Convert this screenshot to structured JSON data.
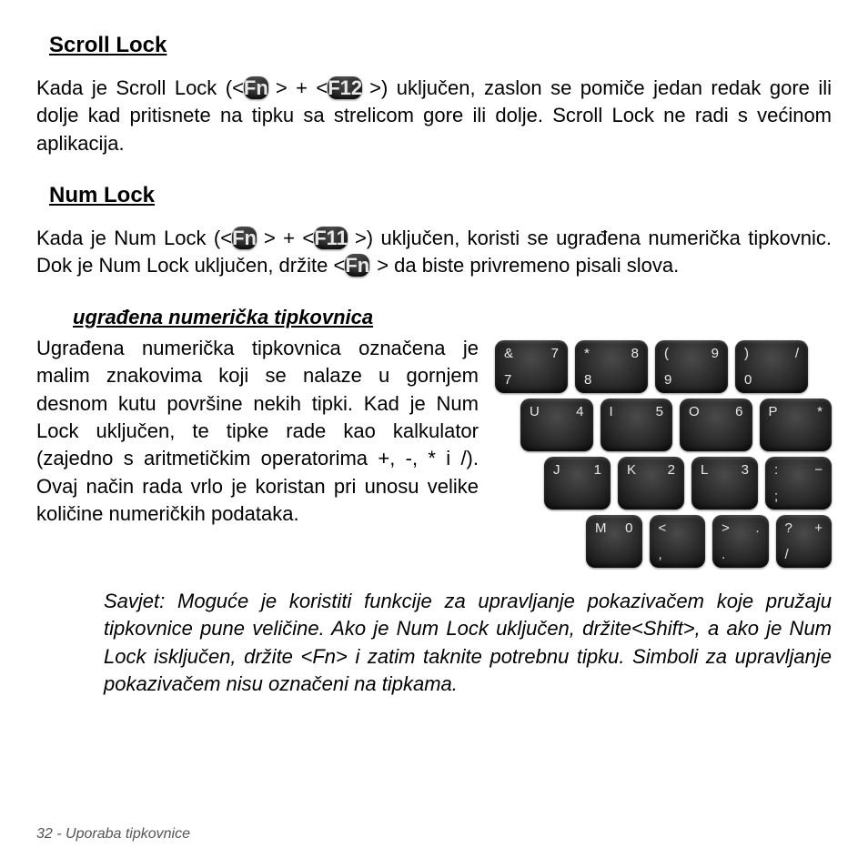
{
  "sections": {
    "scroll_lock": {
      "title": "Scroll Lock",
      "text_pre": "Kada je Scroll Lock (<",
      "fn": "Fn",
      "plus": "> + <",
      "f12": "F12",
      "text_post": ">) uključen, zaslon se pomiče jedan redak gore ili dolje kad pritisnete na tipku sa strelicom gore ili dolje. Scroll Lock ne radi s većinom aplikacija."
    },
    "num_lock": {
      "title": "Num Lock",
      "text_pre": "Kada je Num Lock (<",
      "fn": "Fn",
      "plus": "> + <",
      "f11": "F11",
      "mid": ">) uključen, koristi se ugrađena numerička tipkovnic. Dok je Num Lock uključen, držite <",
      "fn2": "Fn",
      "post": "> da biste privremeno pisali slova."
    },
    "embedded": {
      "subtitle": "ugrađena numerička tipkovnica",
      "text": "Ugrađena numerička tipkovnica označena je malim znakovima koji se nalaze u gornjem desnom kutu površine nekih tipki. Kad je Num Lock uključen, te tipke rade kao kalkulator (zajedno s aritmetičkim operatorima +, -, * i /). Ovaj način rada vrlo je koristan pri unosu velike količine numeričkih podataka."
    },
    "tip": {
      "text": "Savjet: Moguće je koristiti funkcije za upravljanje pokazivačem koje pružaju tipkovnice pune veličine. Ako je Num Lock uključen, držite<Shift>, a ako je Num Lock isključen, držite <Fn> i zatim taknite potrebnu tipku. Simboli za upravljanje pokazivačem nisu označeni na tipkama."
    }
  },
  "keyboard": {
    "key_bg_gradient": [
      "#4a4a4a",
      "#2a2a2a",
      "#0e0e0e"
    ],
    "key_text_color": "#e8e8e8",
    "key_width": 80,
    "key_height": 58,
    "key_radius": 10,
    "key_fontsize": 15,
    "rows": [
      {
        "offset": 0,
        "keys": [
          {
            "tl": "&",
            "bl": "7",
            "tr": "7"
          },
          {
            "tl": "*",
            "bl": "8",
            "tr": "8"
          },
          {
            "tl": "(",
            "bl": "9",
            "tr": "9"
          },
          {
            "tl": ")",
            "bl": "0",
            "tr": "/"
          }
        ]
      },
      {
        "offset": 28,
        "keys": [
          {
            "tl": "U",
            "tr": "4"
          },
          {
            "tl": "I",
            "tr": "5"
          },
          {
            "tl": "O",
            "tr": "6"
          },
          {
            "tl": "P",
            "tr": "*"
          }
        ]
      },
      {
        "offset": 54,
        "keys": [
          {
            "tl": "J",
            "tr": "1"
          },
          {
            "tl": "K",
            "tr": "2"
          },
          {
            "tl": "L",
            "tr": "3"
          },
          {
            "tl": ":",
            "bl": ";",
            "tr": "−"
          }
        ]
      },
      {
        "offset": 100,
        "keys": [
          {
            "tl": "M",
            "tr": "0"
          },
          {
            "tl": "<",
            "bl": ",",
            "tr": ""
          },
          {
            "tl": ">",
            "bl": ".",
            "tr": "."
          },
          {
            "tl": "?",
            "bl": "/",
            "tr": "+"
          }
        ]
      }
    ]
  },
  "footer": "32 - Uporaba tipkovnice",
  "colors": {
    "page_bg": "#ffffff",
    "text": "#000000",
    "footer": "#555555"
  }
}
